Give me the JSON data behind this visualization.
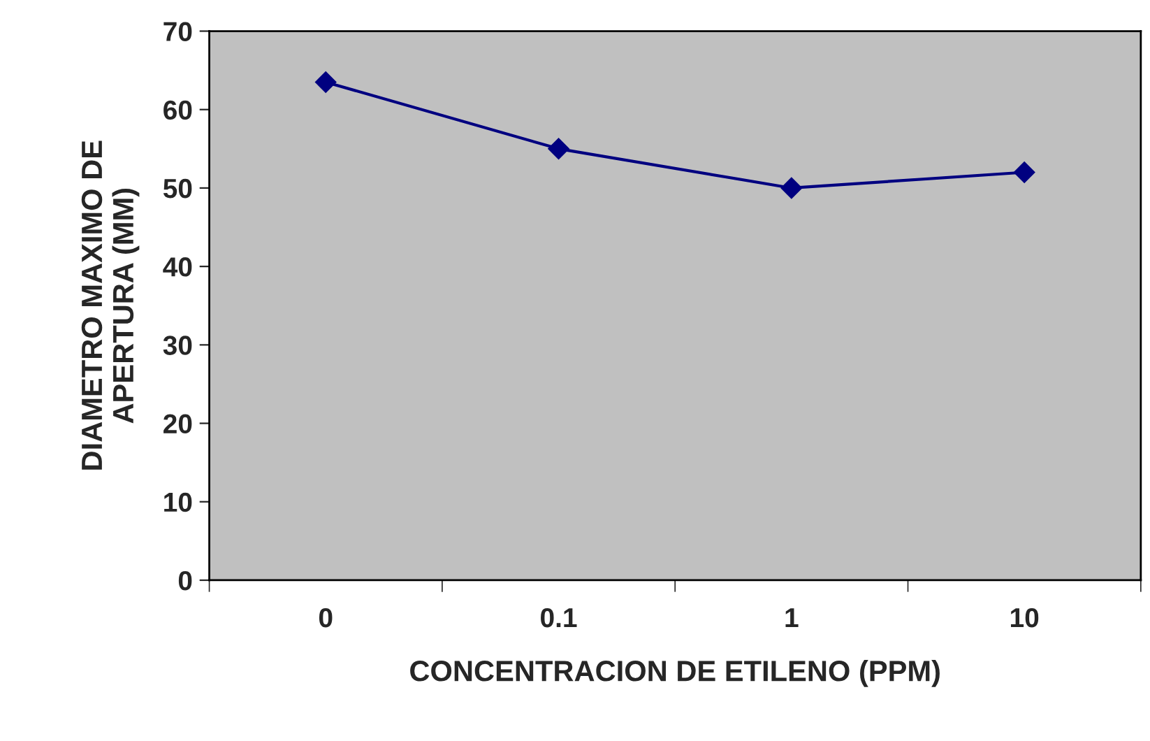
{
  "chart_data": {
    "type": "line",
    "xlabel": "CONCENTRACION DE ETILENO (PPM)",
    "ylabel": "DIAMETRO MAXIMO DE\nAPERTURA (MM)",
    "categories": [
      "0",
      "0.1",
      "1",
      "10"
    ],
    "series": [
      {
        "color": "#000080",
        "values": [
          63.5,
          55,
          50,
          52
        ]
      }
    ],
    "ylim": [
      0,
      70
    ],
    "yticks": [
      0,
      10,
      20,
      30,
      40,
      50,
      60,
      70
    ],
    "grid": false,
    "legend": false,
    "marker": "diamond",
    "line_style": "solid"
  }
}
